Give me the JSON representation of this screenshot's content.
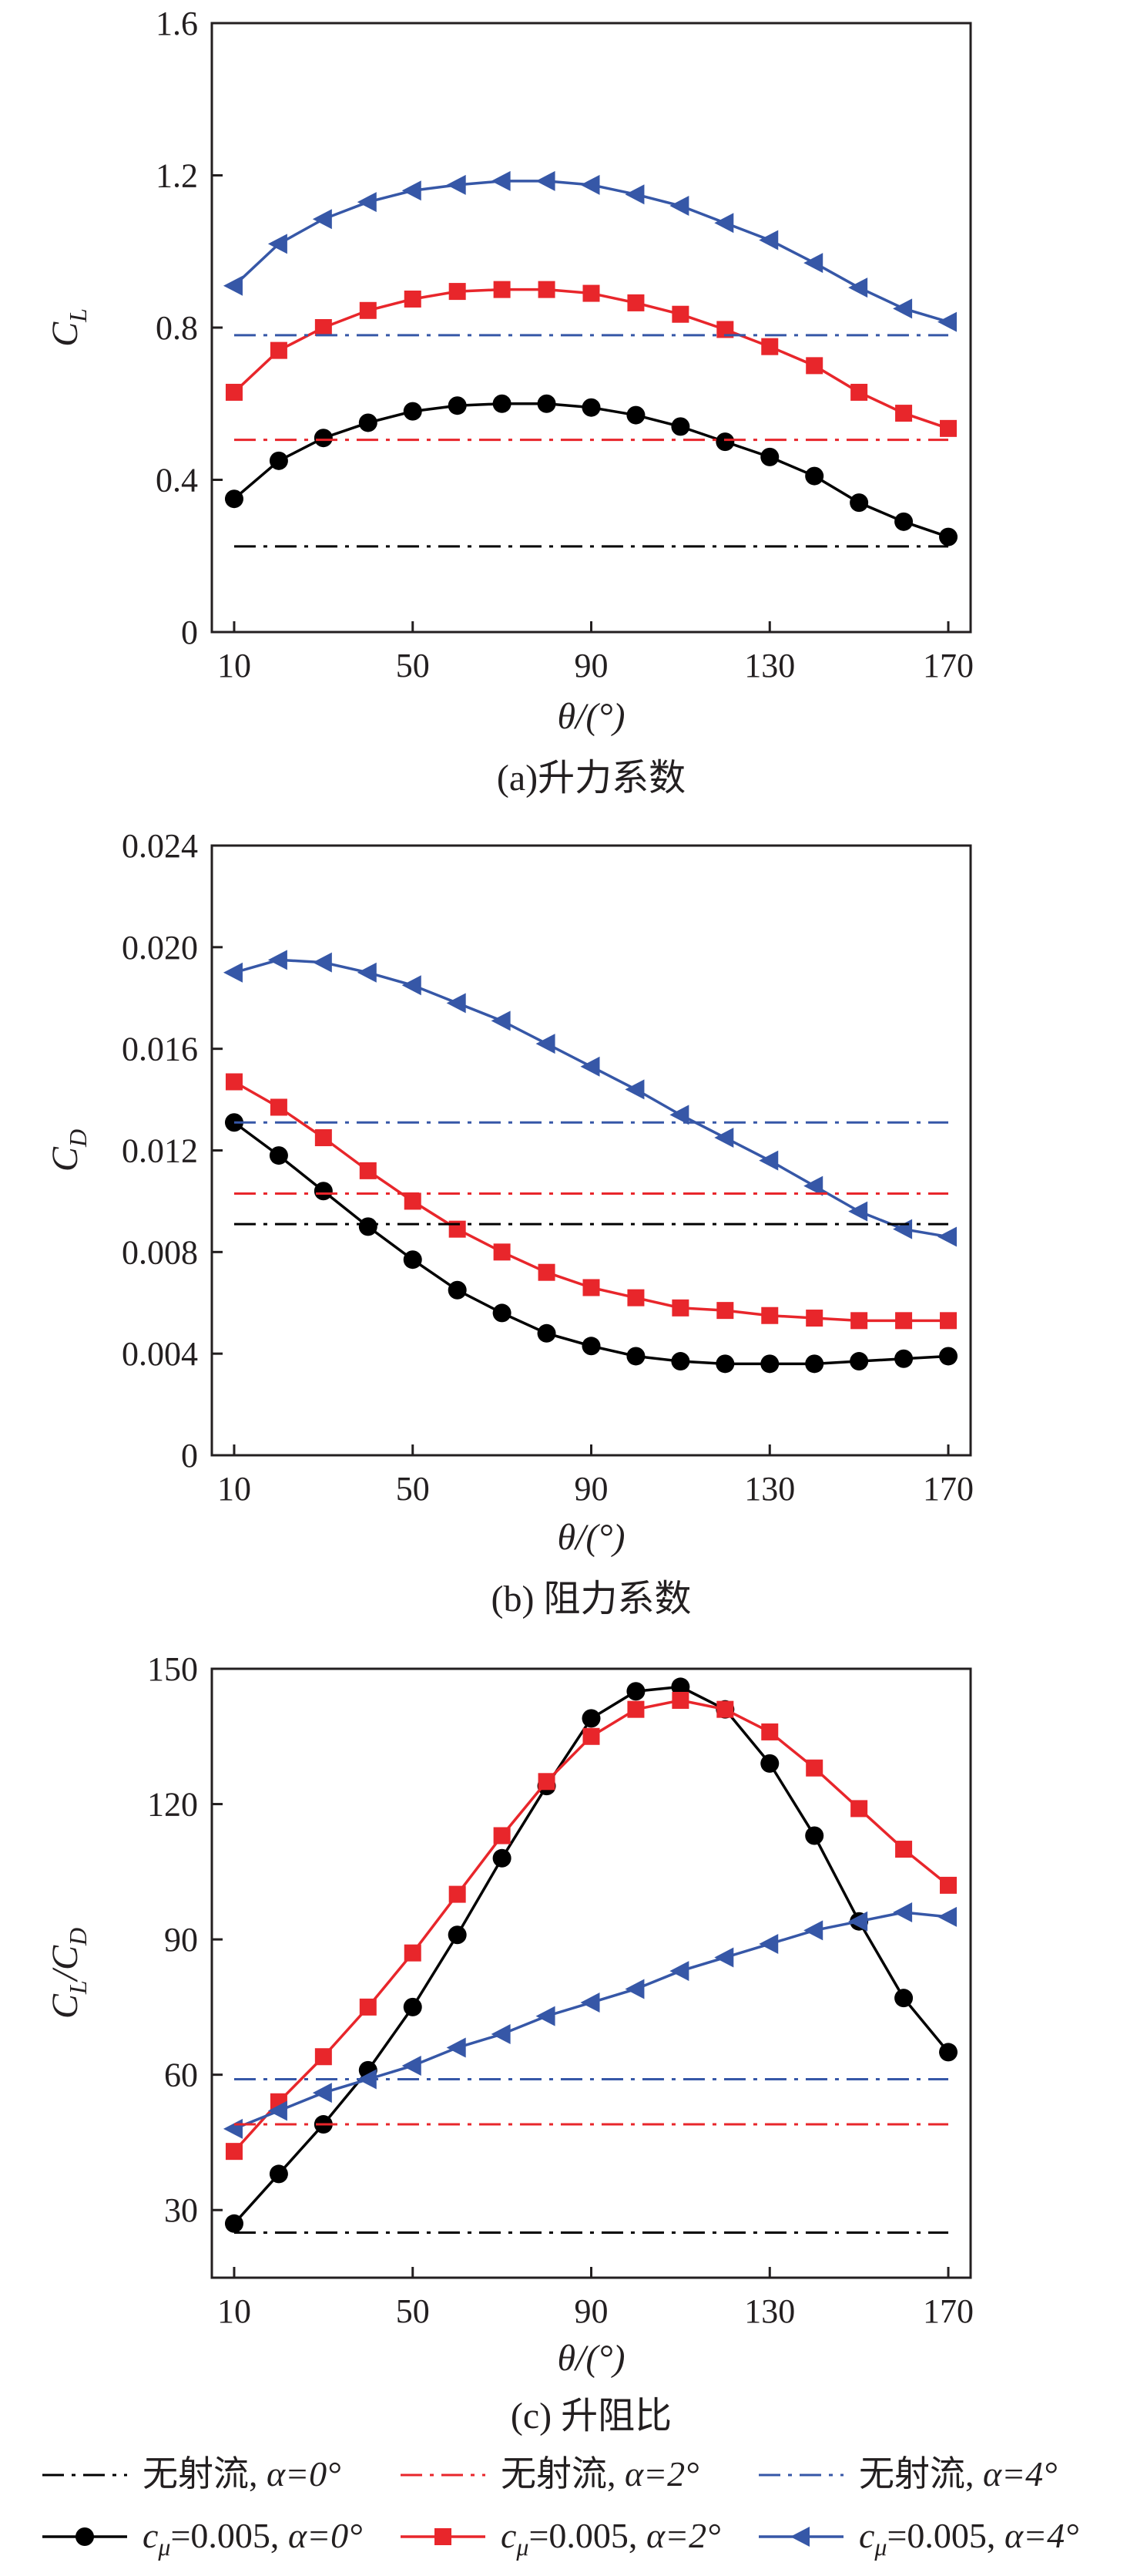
{
  "colors": {
    "black": "#000000",
    "red": "#e8262b",
    "blue": "#3657a7",
    "axis": "#231f20"
  },
  "chart_data": [
    {
      "type": "line",
      "caption": "(a)升力系数",
      "ylabel_main": "C",
      "ylabel_sub": "L",
      "xlabel": "θ/(°)",
      "x_ticks": [
        "10",
        "50",
        "90",
        "130",
        "170"
      ],
      "y_ticks": [
        "0",
        "0.4",
        "0.8",
        "1.2",
        "1.6"
      ],
      "xlim": [
        5,
        175
      ],
      "ylim": [
        0,
        1.6
      ],
      "x": [
        10,
        20,
        30,
        40,
        50,
        60,
        70,
        80,
        90,
        100,
        110,
        120,
        130,
        140,
        150,
        160,
        170
      ],
      "series": [
        {
          "color_key": "black",
          "marker": "circle",
          "values": [
            0.35,
            0.45,
            0.51,
            0.55,
            0.58,
            0.595,
            0.6,
            0.6,
            0.59,
            0.57,
            0.54,
            0.5,
            0.46,
            0.41,
            0.34,
            0.29,
            0.25
          ]
        },
        {
          "color_key": "red",
          "marker": "square",
          "values": [
            0.63,
            0.74,
            0.8,
            0.845,
            0.875,
            0.895,
            0.9,
            0.9,
            0.89,
            0.865,
            0.835,
            0.795,
            0.75,
            0.7,
            0.63,
            0.575,
            0.535
          ]
        },
        {
          "color_key": "blue",
          "marker": "triangle",
          "values": [
            0.91,
            1.02,
            1.085,
            1.13,
            1.16,
            1.175,
            1.185,
            1.185,
            1.175,
            1.15,
            1.12,
            1.075,
            1.03,
            0.97,
            0.905,
            0.85,
            0.815
          ]
        },
        {
          "color_key": "black",
          "dash": true,
          "values_const": 0.225
        },
        {
          "color_key": "red",
          "dash": true,
          "values_const": 0.505
        },
        {
          "color_key": "blue",
          "dash": true,
          "values_const": 0.78
        }
      ]
    },
    {
      "type": "line",
      "caption": "(b) 阻力系数",
      "ylabel_main": "C",
      "ylabel_sub": "D",
      "xlabel": "θ/(°)",
      "x_ticks": [
        "10",
        "50",
        "90",
        "130",
        "170"
      ],
      "y_ticks": [
        "0",
        "0.004",
        "0.008",
        "0.012",
        "0.016",
        "0.020",
        "0.024"
      ],
      "xlim": [
        5,
        175
      ],
      "ylim": [
        0,
        0.024
      ],
      "x": [
        10,
        20,
        30,
        40,
        50,
        60,
        70,
        80,
        90,
        100,
        110,
        120,
        130,
        140,
        150,
        160,
        170
      ],
      "series": [
        {
          "color_key": "black",
          "marker": "circle",
          "values": [
            0.0131,
            0.0118,
            0.0104,
            0.009,
            0.0077,
            0.0065,
            0.0056,
            0.0048,
            0.0043,
            0.0039,
            0.0037,
            0.0036,
            0.0036,
            0.0036,
            0.0037,
            0.0038,
            0.0039
          ]
        },
        {
          "color_key": "red",
          "marker": "square",
          "values": [
            0.0147,
            0.0137,
            0.0125,
            0.0112,
            0.01,
            0.0089,
            0.008,
            0.0072,
            0.0066,
            0.0062,
            0.0058,
            0.0057,
            0.0055,
            0.0054,
            0.0053,
            0.0053,
            0.0053
          ]
        },
        {
          "color_key": "blue",
          "marker": "triangle",
          "values": [
            0.019,
            0.0195,
            0.0194,
            0.019,
            0.0185,
            0.0178,
            0.0171,
            0.0162,
            0.0153,
            0.0144,
            0.0134,
            0.0125,
            0.0116,
            0.0106,
            0.0096,
            0.0089,
            0.0086
          ]
        },
        {
          "color_key": "black",
          "dash": true,
          "values_const": 0.0091
        },
        {
          "color_key": "red",
          "dash": true,
          "values_const": 0.0103
        },
        {
          "color_key": "blue",
          "dash": true,
          "values_const": 0.0131
        }
      ]
    },
    {
      "type": "line",
      "caption": "(c) 升阻比",
      "ylabel_main": "C",
      "ylabel_sub": "L",
      "ylabel_mid": "/C",
      "ylabel_sub2": "D",
      "xlabel": "θ/(°)",
      "x_ticks": [
        "10",
        "50",
        "90",
        "130",
        "170"
      ],
      "y_ticks": [
        "30",
        "60",
        "90",
        "120",
        "150"
      ],
      "xlim": [
        5,
        175
      ],
      "ylim": [
        15,
        150
      ],
      "x": [
        10,
        20,
        30,
        40,
        50,
        60,
        70,
        80,
        90,
        100,
        110,
        120,
        130,
        140,
        150,
        160,
        170
      ],
      "series": [
        {
          "color_key": "black",
          "marker": "circle",
          "values": [
            27,
            38,
            49,
            61,
            75,
            91,
            108,
            124,
            139,
            145,
            146,
            141,
            129,
            113,
            94,
            77,
            65
          ]
        },
        {
          "color_key": "red",
          "marker": "square",
          "values": [
            43,
            54,
            64,
            75,
            87,
            100,
            113,
            125,
            135,
            141,
            143,
            141,
            136,
            128,
            119,
            110,
            102
          ]
        },
        {
          "color_key": "blue",
          "marker": "triangle",
          "values": [
            48,
            52,
            56,
            59,
            62,
            66,
            69,
            73,
            76,
            79,
            83,
            86,
            89,
            92,
            94,
            96,
            95
          ]
        },
        {
          "color_key": "black",
          "dash": true,
          "values_const": 25
        },
        {
          "color_key": "red",
          "dash": true,
          "values_const": 49
        },
        {
          "color_key": "blue",
          "dash": true,
          "values_const": 59
        }
      ]
    }
  ],
  "legend": {
    "row1": [
      {
        "color_key": "black",
        "text": "无射流, ",
        "alpha": "α=0°"
      },
      {
        "color_key": "red",
        "text": "无射流, ",
        "alpha": "α=2°"
      },
      {
        "color_key": "blue",
        "text": "无射流, ",
        "alpha": "α=4°"
      }
    ],
    "row2": [
      {
        "color_key": "black",
        "marker": "circle",
        "pre": "c",
        "sub": "μ",
        "text": "=0.005, ",
        "alpha": "α=0°"
      },
      {
        "color_key": "red",
        "marker": "square",
        "pre": "c",
        "sub": "μ",
        "text": "=0.005, ",
        "alpha": "α=2°"
      },
      {
        "color_key": "blue",
        "marker": "triangle",
        "pre": "c",
        "sub": "μ",
        "text": "=0.005, ",
        "alpha": "α=4°"
      }
    ]
  }
}
